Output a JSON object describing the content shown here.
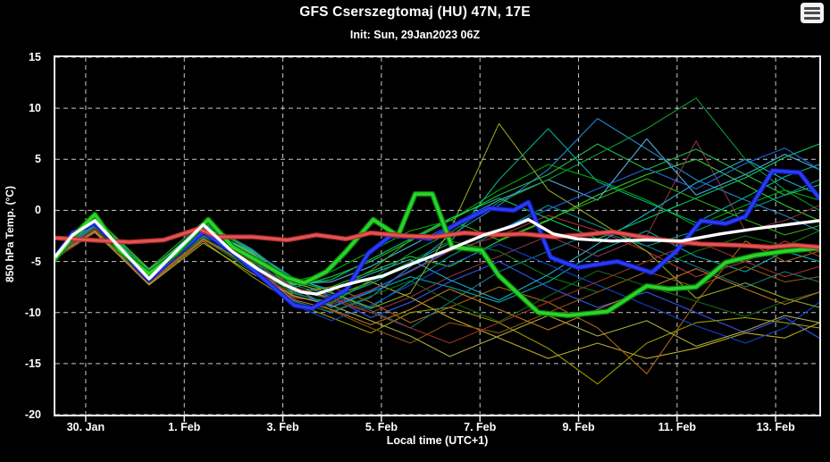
{
  "header": {
    "title": "GFS Cserszegtomaj (HU) 47N, 17E",
    "subtitle": "Init: Sun, 29Jan2023 06Z",
    "menu_icon": "hamburger-menu-icon"
  },
  "chart_data": {
    "type": "line",
    "title": "GFS Cserszegtomaj (HU) 47N, 17E",
    "subtitle": "Init: Sun, 29Jan2023 06Z",
    "xlabel": "Local time (UTC+1)",
    "ylabel": "850 hPa Temp. (°C)",
    "ylim": [
      -20,
      15
    ],
    "yticks": [
      15,
      10,
      5,
      0,
      -5,
      -10,
      -15,
      -20
    ],
    "x_span_days": 15.5,
    "xticks": [
      {
        "pos": 0.615,
        "label": "30. Jan"
      },
      {
        "pos": 2.615,
        "label": "1. Feb"
      },
      {
        "pos": 4.615,
        "label": "3. Feb"
      },
      {
        "pos": 6.615,
        "label": "5. Feb"
      },
      {
        "pos": 8.615,
        "label": "7. Feb"
      },
      {
        "pos": 10.615,
        "label": "9. Feb"
      },
      {
        "pos": 12.615,
        "label": "11. Feb"
      },
      {
        "pos": 14.615,
        "label": "13. Feb"
      }
    ],
    "grid": {
      "style": "dashed",
      "color": "#c8c8c8",
      "dash": "5 4"
    },
    "colors": {
      "background": "#000000",
      "frame": "#ededed",
      "text": "#ffffff"
    },
    "legend": "none",
    "main_series": [
      {
        "name": "thick-blue-line",
        "color": "#2a3cf0",
        "edge": "#0e16b4",
        "width": 3.4,
        "edge_width": 5.6,
        "t": [
          0,
          0.35,
          0.8,
          1.3,
          1.9,
          2.45,
          3.0,
          3.6,
          4.2,
          4.85,
          5.2,
          5.9,
          6.35,
          6.8,
          7.3,
          7.6,
          8.2,
          8.8,
          9.3,
          9.6,
          10.05,
          10.6,
          11.4,
          12.1,
          12.6,
          13.1,
          13.6,
          14.0,
          14.55,
          15.1,
          15.5
        ],
        "y": [
          -4.6,
          -2.2,
          -1.2,
          -3.8,
          -6.8,
          -4.4,
          -2.1,
          -4.1,
          -6.6,
          -9.3,
          -9.6,
          -7.8,
          -4.2,
          -2.5,
          -2.6,
          -2.8,
          -1.2,
          0.2,
          0.0,
          0.8,
          -4.6,
          -5.6,
          -5.0,
          -6.1,
          -4.0,
          -1.0,
          -1.3,
          -0.6,
          3.9,
          3.7,
          1.2
        ]
      },
      {
        "name": "thick-green-line",
        "color": "#2ad42a",
        "edge": "#0a7a0a",
        "width": 3.6,
        "edge_width": 6.2,
        "t": [
          0,
          0.35,
          0.8,
          1.3,
          1.9,
          2.45,
          3.1,
          3.6,
          4.2,
          4.7,
          5.05,
          5.5,
          5.9,
          6.45,
          6.95,
          7.3,
          7.65,
          8.05,
          8.65,
          9.0,
          9.4,
          9.8,
          10.4,
          11.2,
          12.0,
          12.45,
          13.0,
          13.6,
          14.2,
          14.8,
          15.5
        ],
        "y": [
          -4.7,
          -2.6,
          -0.4,
          -3.9,
          -6.2,
          -4.2,
          -0.9,
          -3.6,
          -5.2,
          -6.6,
          -7.1,
          -6.0,
          -4.0,
          -0.9,
          -2.5,
          1.6,
          1.6,
          -3.6,
          -3.9,
          -6.4,
          -8.2,
          -10.0,
          -10.3,
          -9.9,
          -7.4,
          -7.7,
          -7.5,
          -5.1,
          -4.4,
          -4.0,
          -3.7
        ]
      },
      {
        "name": "thick-red-line",
        "color": "#e25555",
        "edge": "#b02a2a",
        "width": 3.0,
        "edge_width": 5.4,
        "t": [
          0,
          0.7,
          1.5,
          2.2,
          2.9,
          3.3,
          4.0,
          4.7,
          5.3,
          5.9,
          6.4,
          7.1,
          7.7,
          8.3,
          8.9,
          9.5,
          10.1,
          10.7,
          11.3,
          11.9,
          12.5,
          13.1,
          13.8,
          14.5,
          15.0,
          15.5
        ],
        "y": [
          -2.7,
          -2.9,
          -3.1,
          -2.9,
          -1.8,
          -2.6,
          -2.6,
          -2.9,
          -2.4,
          -2.8,
          -2.2,
          -2.5,
          -2.6,
          -2.2,
          -2.4,
          -2.3,
          -2.6,
          -2.4,
          -2.1,
          -2.6,
          -3.0,
          -3.3,
          -3.4,
          -3.6,
          -3.4,
          -3.6
        ]
      },
      {
        "name": "thick-white-line",
        "color": "#ffffff",
        "edge": null,
        "width": 3.4,
        "edge_width": 0,
        "t": [
          0,
          0.35,
          0.8,
          1.3,
          1.9,
          2.45,
          3.0,
          3.58,
          4.12,
          4.66,
          5.0,
          5.3,
          5.8,
          6.2,
          6.65,
          7.2,
          7.9,
          8.7,
          9.3,
          9.6,
          10.1,
          10.6,
          11.3,
          12.0,
          12.7,
          13.5,
          14.2,
          15.0,
          15.5
        ],
        "y": [
          -4.5,
          -2.4,
          -1.0,
          -3.6,
          -6.7,
          -4.0,
          -1.4,
          -4.0,
          -5.8,
          -7.3,
          -8.0,
          -8.2,
          -7.4,
          -6.9,
          -6.4,
          -5.3,
          -4.0,
          -2.4,
          -1.5,
          -0.9,
          -2.3,
          -2.8,
          -3.0,
          -2.9,
          -3.0,
          -2.3,
          -1.8,
          -1.3,
          -1.0
        ]
      }
    ],
    "ensemble_members": {
      "t": [
        0,
        0.8,
        1.9,
        3.0,
        4.0,
        4.8,
        5.6,
        6.4,
        7.2,
        8.0,
        9.0,
        10.0,
        11.0,
        12.0,
        13.0,
        14.0,
        14.8,
        15.5
      ],
      "members": [
        {
          "color": "#00aa00",
          "y": [
            -4.4,
            -1.2,
            -6.0,
            -1.5,
            -4.5,
            -7.0,
            -6.0,
            -4.0,
            -2.0,
            -1.0,
            2.0,
            4.5,
            3.0,
            1.0,
            -1.5,
            0.5,
            2.0,
            1.0
          ]
        },
        {
          "color": "#33cc33",
          "y": [
            -4.6,
            -0.8,
            -6.5,
            -2.2,
            -5.5,
            -8.0,
            -7.5,
            -6.0,
            -4.5,
            -5.5,
            -3.0,
            -1.0,
            1.5,
            3.5,
            5.0,
            2.5,
            0.5,
            -1.0
          ]
        },
        {
          "color": "#117711",
          "y": [
            -4.5,
            -1.5,
            -7.0,
            -2.8,
            -6.0,
            -8.5,
            -9.0,
            -7.0,
            -5.0,
            -3.0,
            -4.0,
            -6.5,
            -8.0,
            -6.0,
            -4.0,
            -2.5,
            -3.5,
            -2.0
          ]
        },
        {
          "color": "#009988",
          "y": [
            -4.3,
            -1.0,
            -6.2,
            -1.8,
            -4.0,
            -6.5,
            -8.0,
            -9.5,
            -7.0,
            -4.5,
            -2.0,
            0.5,
            -1.5,
            -3.5,
            -2.0,
            0.0,
            1.5,
            3.0
          ]
        },
        {
          "color": "#00aaaa",
          "y": [
            -4.7,
            -2.0,
            -6.8,
            -2.5,
            -5.0,
            -7.5,
            -9.5,
            -8.0,
            -6.5,
            -7.5,
            -9.0,
            -7.0,
            -4.0,
            -2.0,
            -4.5,
            -6.0,
            -4.0,
            -5.0
          ]
        },
        {
          "color": "#2288cc",
          "y": [
            -4.4,
            -1.4,
            -6.4,
            -2.0,
            -4.8,
            -8.8,
            -10.0,
            -8.5,
            -5.5,
            -2.5,
            0.5,
            4.0,
            9.0,
            6.0,
            3.0,
            1.0,
            -0.5,
            -2.0
          ]
        },
        {
          "color": "#3355ee",
          "y": [
            -4.6,
            -1.1,
            -6.1,
            -1.2,
            -3.8,
            -6.8,
            -8.5,
            -10.5,
            -9.0,
            -7.0,
            -5.0,
            -7.5,
            -9.5,
            -8.0,
            -10.0,
            -12.0,
            -10.5,
            -12.5
          ]
        },
        {
          "color": "#55aadd",
          "y": [
            -4.5,
            -0.9,
            -5.8,
            -1.6,
            -4.2,
            -7.2,
            -7.0,
            -5.5,
            -3.5,
            -1.5,
            1.0,
            3.0,
            1.0,
            7.0,
            1.5,
            3.5,
            5.5,
            4.0
          ]
        },
        {
          "color": "#999900",
          "y": [
            -4.8,
            -1.8,
            -7.2,
            -3.0,
            -6.5,
            -9.0,
            -10.5,
            -12.0,
            -10.0,
            -9.5,
            -11.0,
            -13.5,
            -17.0,
            -13.0,
            -11.0,
            -10.5,
            -11.0,
            -11.5
          ]
        },
        {
          "color": "#bbaa22",
          "y": [
            -4.4,
            -1.3,
            -6.6,
            -2.4,
            -5.2,
            -7.8,
            -8.5,
            -7.0,
            -8.5,
            -10.5,
            -12.5,
            -14.5,
            -13.0,
            -14.5,
            -13.5,
            -12.0,
            -12.5,
            -11.0
          ]
        },
        {
          "color": "#aa6611",
          "y": [
            -4.6,
            -1.6,
            -6.9,
            -2.6,
            -5.8,
            -8.2,
            -7.5,
            -9.0,
            -11.0,
            -9.5,
            -7.5,
            -9.0,
            -11.5,
            -16.0,
            -9.0,
            -3.0,
            -5.0,
            -4.0
          ]
        },
        {
          "color": "#885511",
          "y": [
            -4.5,
            -1.7,
            -6.3,
            -2.1,
            -4.6,
            -7.4,
            -9.8,
            -11.5,
            -13.0,
            -11.0,
            -12.0,
            -10.0,
            -8.0,
            -6.0,
            -7.5,
            -5.5,
            -7.0,
            -6.5
          ]
        },
        {
          "color": "#aa3333",
          "y": [
            -4.7,
            -2.2,
            -7.1,
            -2.9,
            -5.4,
            -8.4,
            -9.2,
            -7.8,
            -6.0,
            -4.0,
            -2.5,
            -0.5,
            -2.0,
            -4.0,
            -6.5,
            -5.0,
            -3.0,
            -4.5
          ]
        },
        {
          "color": "#883344",
          "y": [
            -4.3,
            -1.9,
            -6.7,
            -2.3,
            -5.6,
            -8.6,
            -8.8,
            -10.0,
            -8.5,
            -6.5,
            -4.5,
            -2.5,
            -4.5,
            -2.5,
            6.8,
            -2.0,
            -1.0,
            0.5
          ]
        },
        {
          "color": "#22bb44",
          "y": [
            -4.5,
            -0.7,
            -5.9,
            -1.4,
            -4.4,
            -7.6,
            -6.5,
            -5.0,
            -3.0,
            -1.0,
            1.5,
            3.5,
            6.5,
            4.0,
            6.0,
            3.5,
            1.5,
            2.5
          ]
        },
        {
          "color": "#119933",
          "y": [
            -4.6,
            -1.3,
            -6.1,
            -1.9,
            -5.1,
            -8.1,
            -9.1,
            -6.8,
            -4.2,
            -2.2,
            0.8,
            3.0,
            5.5,
            8.0,
            11.0,
            5.0,
            2.0,
            0.0
          ]
        },
        {
          "color": "#117788",
          "y": [
            -4.4,
            -1.6,
            -6.6,
            -2.7,
            -5.3,
            -7.3,
            -8.3,
            -9.8,
            -11.5,
            -9.0,
            -6.0,
            -4.0,
            -2.0,
            -3.5,
            -5.5,
            -7.5,
            -6.0,
            -7.0
          ]
        },
        {
          "color": "#22aacc",
          "y": [
            -4.7,
            -1.0,
            -6.2,
            -1.7,
            -4.1,
            -6.6,
            -7.8,
            -6.2,
            -4.8,
            -6.8,
            -8.8,
            -6.3,
            -3.3,
            -0.3,
            2.7,
            5.0,
            3.0,
            1.5
          ]
        },
        {
          "color": "#1144cc",
          "y": [
            -4.5,
            -1.2,
            -6.9,
            -2.2,
            -5.7,
            -9.2,
            -10.8,
            -9.3,
            -7.3,
            -5.3,
            -3.3,
            -5.3,
            -7.3,
            -9.3,
            -11.3,
            -13.0,
            -11.5,
            -9.0
          ]
        },
        {
          "color": "#aaaa44",
          "y": [
            -4.4,
            -2.1,
            -7.3,
            -3.2,
            -6.2,
            -8.3,
            -9.3,
            -10.8,
            -12.3,
            -14.3,
            -12.3,
            -10.3,
            -12.3,
            -10.8,
            -13.3,
            -11.8,
            -10.3,
            -11.0
          ]
        },
        {
          "color": "#33aa11",
          "y": [
            -4.6,
            -0.6,
            -5.7,
            -1.1,
            -3.9,
            -6.9,
            -7.9,
            -5.9,
            -2.9,
            -0.9,
            -2.9,
            -0.9,
            1.1,
            3.1,
            1.1,
            -0.9,
            -2.4,
            -1.5
          ]
        },
        {
          "color": "#00b090",
          "y": [
            -4.5,
            -1.4,
            -6.5,
            -2.0,
            -4.9,
            -7.7,
            -8.7,
            -7.2,
            -5.2,
            -3.2,
            3.0,
            8.0,
            2.8,
            0.8,
            -1.2,
            1.3,
            3.3,
            4.5
          ]
        },
        {
          "color": "#156615",
          "y": [
            -4.7,
            -1.8,
            -6.8,
            -2.6,
            -5.9,
            -8.9,
            -9.9,
            -8.4,
            -6.9,
            -8.9,
            -10.9,
            -8.4,
            -5.9,
            -7.4,
            -8.9,
            -10.4,
            -8.9,
            -8.0
          ]
        },
        {
          "color": "#88aa22",
          "y": [
            -4.4,
            -1.1,
            -6.0,
            -1.6,
            -4.3,
            -7.1,
            -8.1,
            -9.6,
            -8.1,
            -2.0,
            8.5,
            2.0,
            -1.0,
            -4.0,
            -8.6,
            -7.1,
            -8.6,
            -9.5
          ]
        },
        {
          "color": "#2266dd",
          "y": [
            -4.6,
            -1.5,
            -6.3,
            -1.9,
            -4.7,
            -7.9,
            -9.4,
            -7.9,
            -5.9,
            -3.9,
            -1.9,
            0.1,
            2.1,
            4.1,
            2.1,
            4.6,
            6.1,
            4.0
          ]
        },
        {
          "color": "#bb7722",
          "y": [
            -4.5,
            -2.0,
            -7.0,
            -2.8,
            -5.5,
            -8.7,
            -9.7,
            -11.2,
            -9.7,
            -7.7,
            -9.7,
            -11.7,
            -9.7,
            -7.7,
            -5.7,
            -7.7,
            -9.2,
            -8.0
          ]
        },
        {
          "color": "#993322",
          "y": [
            -4.4,
            -1.7,
            -6.4,
            -2.4,
            -5.0,
            -7.5,
            -8.5,
            -10.0,
            -11.5,
            -13.0,
            -11.0,
            -9.0,
            -7.0,
            -5.0,
            -3.0,
            -5.0,
            -6.5,
            -5.5
          ]
        },
        {
          "color": "#00cc66",
          "y": [
            -4.6,
            -0.9,
            -6.1,
            -1.3,
            -4.0,
            -7.3,
            -6.8,
            -4.8,
            -2.8,
            -0.8,
            1.2,
            -0.8,
            -2.8,
            -0.8,
            1.2,
            3.2,
            5.2,
            6.5
          ]
        }
      ]
    }
  }
}
